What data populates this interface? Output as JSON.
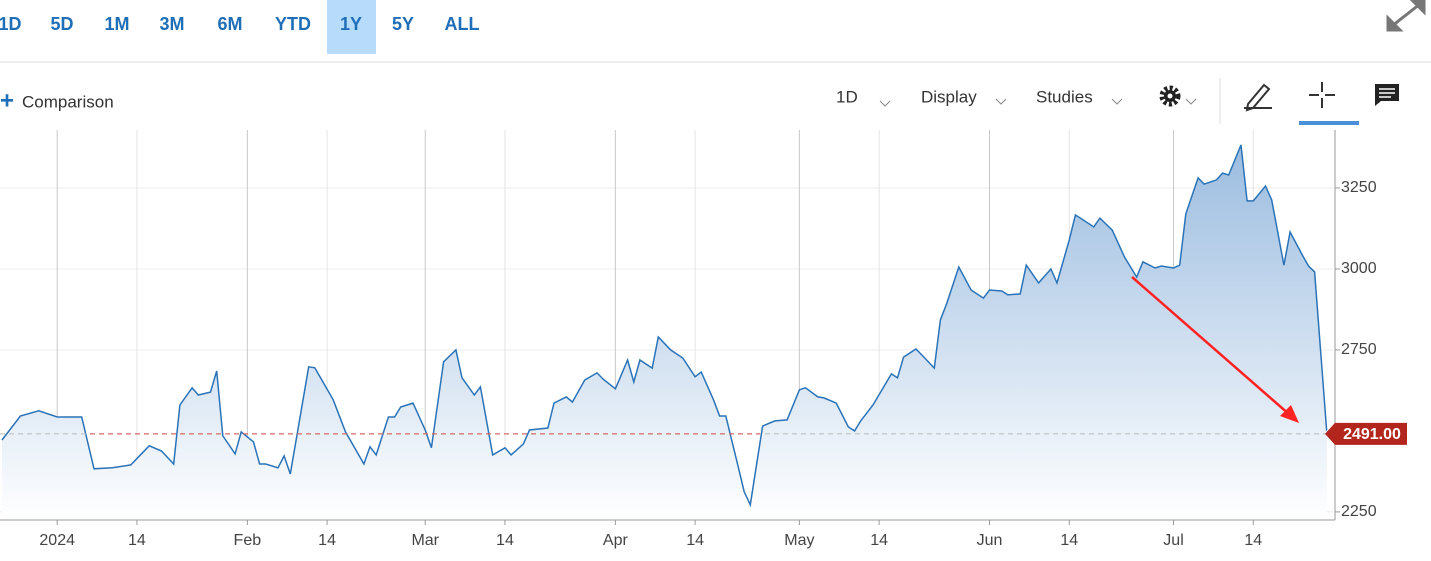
{
  "ranges": [
    "1D",
    "5D",
    "1M",
    "3M",
    "6M",
    "YTD",
    "1Y",
    "5Y",
    "ALL"
  ],
  "active_range": 6,
  "toolbar": {
    "comparison": "Comparison",
    "interval": "1D",
    "display": "Display",
    "studies": "Studies"
  },
  "chart_data": {
    "type": "area",
    "color": "#2a73b8",
    "x": [
      "2023-12-23",
      "2023-12-26",
      "2023-12-29",
      "2024-01-01",
      "2024-01-05",
      "2024-01-07",
      "2024-01-10",
      "2024-01-13",
      "2024-01-16",
      "2024-01-18",
      "2024-01-20",
      "2024-01-21",
      "2024-01-23",
      "2024-01-24",
      "2024-01-26",
      "2024-01-27",
      "2024-01-28",
      "2024-01-30",
      "2024-01-31",
      "2024-02-02",
      "2024-02-03",
      "2024-02-04",
      "2024-02-06",
      "2024-02-07",
      "2024-02-08",
      "2024-02-11",
      "2024-02-12",
      "2024-02-15",
      "2024-02-17",
      "2024-02-20",
      "2024-02-21",
      "2024-02-22",
      "2024-02-24",
      "2024-02-25",
      "2024-02-26",
      "2024-02-28",
      "2024-03-01",
      "2024-03-02",
      "2024-03-04",
      "2024-03-06",
      "2024-03-07",
      "2024-03-09",
      "2024-03-10",
      "2024-03-12",
      "2024-03-14",
      "2024-03-15",
      "2024-03-17",
      "2024-03-18",
      "2024-03-21",
      "2024-03-22",
      "2024-03-24",
      "2024-03-25",
      "2024-03-27",
      "2024-03-29",
      "2024-03-30",
      "2024-04-01",
      "2024-04-03",
      "2024-04-04",
      "2024-04-05",
      "2024-04-07",
      "2024-04-08",
      "2024-04-10",
      "2024-04-12",
      "2024-04-14",
      "2024-04-15",
      "2024-04-17",
      "2024-04-18",
      "2024-04-19",
      "2024-04-21",
      "2024-04-22",
      "2024-04-23",
      "2024-04-25",
      "2024-04-27",
      "2024-04-29",
      "2024-05-01",
      "2024-05-02",
      "2024-05-04",
      "2024-05-05",
      "2024-05-07",
      "2024-05-09",
      "2024-05-10",
      "2024-05-11",
      "2024-05-13",
      "2024-05-16",
      "2024-05-17",
      "2024-05-18",
      "2024-05-20",
      "2024-05-21",
      "2024-05-23",
      "2024-05-24",
      "2024-05-25",
      "2024-05-27",
      "2024-05-29",
      "2024-05-31",
      "2024-06-01",
      "2024-06-03",
      "2024-06-04",
      "2024-06-06",
      "2024-06-07",
      "2024-06-09",
      "2024-06-11",
      "2024-06-12",
      "2024-06-14",
      "2024-06-15",
      "2024-06-18",
      "2024-06-19",
      "2024-06-21",
      "2024-06-23",
      "2024-06-25",
      "2024-06-26",
      "2024-06-28",
      "2024-06-29",
      "2024-07-01",
      "2024-07-02",
      "2024-07-03",
      "2024-07-05",
      "2024-07-06",
      "2024-07-08",
      "2024-07-09",
      "2024-07-10",
      "2024-07-12",
      "2024-07-13",
      "2024-07-14",
      "2024-07-16",
      "2024-07-17",
      "2024-07-19",
      "2024-07-20",
      "2024-07-22",
      "2024-07-23",
      "2024-07-24",
      "2024-07-26"
    ],
    "values": [
      2472,
      2546,
      2562,
      2543,
      2543,
      2383,
      2386,
      2395,
      2454,
      2438,
      2398,
      2580,
      2633,
      2611,
      2620,
      2685,
      2485,
      2429,
      2497,
      2466,
      2398,
      2398,
      2386,
      2423,
      2367,
      2698,
      2695,
      2596,
      2497,
      2398,
      2451,
      2426,
      2543,
      2543,
      2574,
      2586,
      2503,
      2448,
      2713,
      2750,
      2664,
      2611,
      2636,
      2426,
      2448,
      2426,
      2460,
      2503,
      2509,
      2586,
      2605,
      2589,
      2657,
      2679,
      2660,
      2630,
      2719,
      2651,
      2719,
      2694,
      2790,
      2750,
      2725,
      2667,
      2682,
      2596,
      2546,
      2546,
      2392,
      2312,
      2272,
      2515,
      2531,
      2534,
      2627,
      2633,
      2605,
      2602,
      2586,
      2512,
      2500,
      2531,
      2580,
      2676,
      2664,
      2728,
      2753,
      2734,
      2694,
      2843,
      2892,
      3006,
      2935,
      2910,
      2935,
      2932,
      2920,
      2923,
      3012,
      2957,
      3000,
      2957,
      3090,
      3167,
      3130,
      3157,
      3120,
      3037,
      2975,
      3022,
      3003,
      3009,
      3003,
      3012,
      3170,
      3281,
      3262,
      3275,
      3296,
      3290,
      3383,
      3210,
      3210,
      3256,
      3213,
      3012,
      3114,
      3043,
      3009,
      2991,
      2491
    ],
    "price_marker": {
      "value": 2491,
      "label": "2491.00"
    },
    "xlim": [
      "2023-12-23",
      "2024-07-27"
    ],
    "xticks": [
      {
        "value": "2024-01-01",
        "label": "2024"
      },
      {
        "value": "2024-01-14",
        "label": "14"
      },
      {
        "value": "2024-02-01",
        "label": "Feb"
      },
      {
        "value": "2024-02-14",
        "label": "14"
      },
      {
        "value": "2024-03-01",
        "label": "Mar"
      },
      {
        "value": "2024-03-14",
        "label": "14"
      },
      {
        "value": "2024-04-01",
        "label": "Apr"
      },
      {
        "value": "2024-04-14",
        "label": "14"
      },
      {
        "value": "2024-05-01",
        "label": "May"
      },
      {
        "value": "2024-05-14",
        "label": "14"
      },
      {
        "value": "2024-06-01",
        "label": "Jun"
      },
      {
        "value": "2024-06-14",
        "label": "14"
      },
      {
        "value": "2024-07-01",
        "label": "Jul"
      },
      {
        "value": "2024-07-14",
        "label": "14"
      }
    ],
    "ylim": [
      2225,
      3429
    ],
    "yticks": [
      2250,
      2750,
      3000,
      3250
    ],
    "grid": true
  }
}
